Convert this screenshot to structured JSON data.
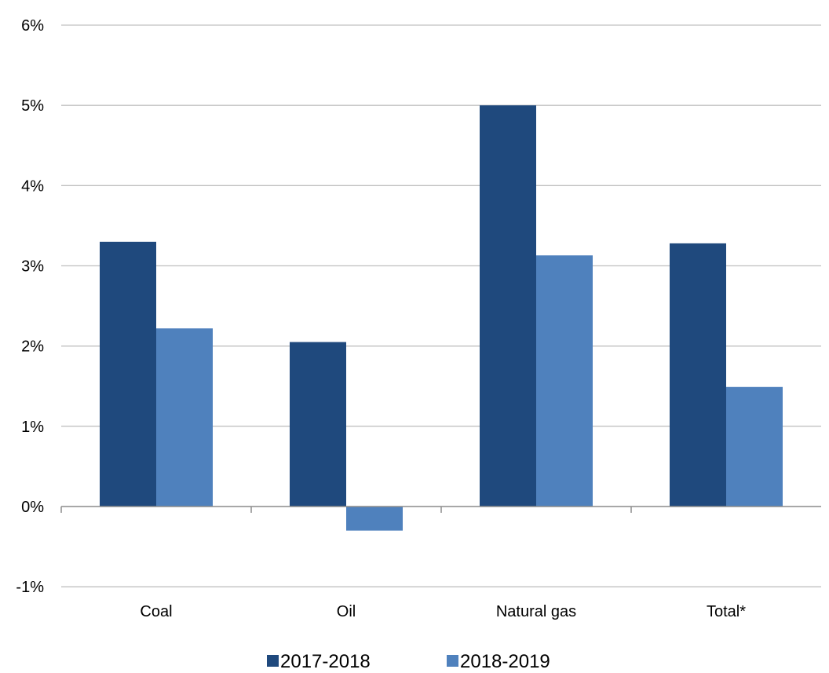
{
  "chart_data": {
    "type": "bar",
    "categories": [
      "Coal",
      "Oil",
      "Natural gas",
      "Total*"
    ],
    "series": [
      {
        "name": "2017-2018",
        "values": [
          3.3,
          2.05,
          5.0,
          3.28
        ],
        "color": "#1f497d"
      },
      {
        "name": "2018-2019",
        "values": [
          2.22,
          -0.3,
          3.13,
          1.49
        ],
        "color": "#4f81bd"
      }
    ],
    "y_ticks": [
      {
        "value": 6,
        "label": "6%"
      },
      {
        "value": 5,
        "label": "5%"
      },
      {
        "value": 4,
        "label": "4%"
      },
      {
        "value": 3,
        "label": "3%"
      },
      {
        "value": 2,
        "label": "2%"
      },
      {
        "value": 1,
        "label": "1%"
      },
      {
        "value": 0,
        "label": "0%"
      },
      {
        "value": -1,
        "label": "-1%"
      }
    ],
    "ylim": [
      -1,
      6
    ],
    "grid": true,
    "legend_position": "bottom",
    "gridline_color": "#c0c0c0"
  }
}
